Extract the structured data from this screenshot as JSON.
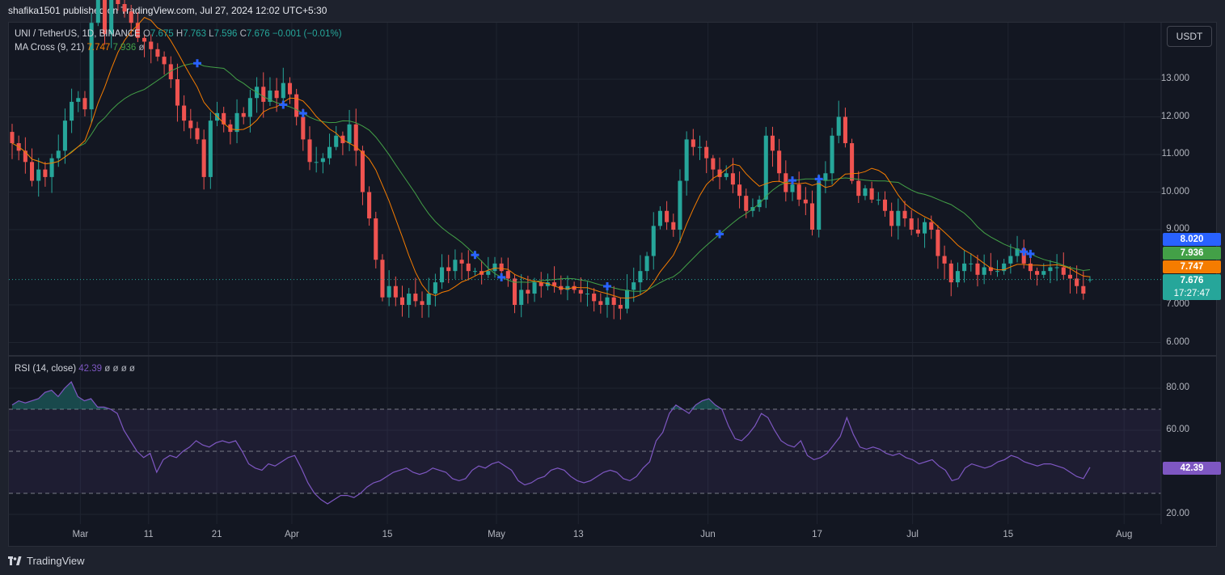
{
  "header": {
    "published": "shafika1501 published on TradingView.com, Jul 27, 2024 12:02 UTC+5:30"
  },
  "legend": {
    "symbol": "UNI / TetherUS, 1D, BINANCE",
    "o_label": "O",
    "o": "7.675",
    "h_label": "H",
    "h": "7.763",
    "l_label": "L",
    "l": "7.596",
    "c_label": "C",
    "c": "7.676",
    "change": "−0.001 (−0.01%)",
    "ma_name": "MA Cross (9, 21)",
    "ma_fast": "7.747",
    "ma_slow": "7.936",
    "ma_extra": "ø",
    "rsi_name": "RSI (14, close)",
    "rsi_value": "42.39",
    "rsi_extra": "ø ø ø ø"
  },
  "currency_button": "USDT",
  "price_tags": {
    "blue": "8.020",
    "green": "7.936",
    "orange": "7.747",
    "last": "7.676",
    "countdown": "17:27:47",
    "rsi": "42.39"
  },
  "colors": {
    "up": "#26a69a",
    "down": "#ef5350",
    "ma_fast": "#f57c00",
    "ma_slow": "#43a047",
    "cross": "#2962ff",
    "rsi": "#7e57c2",
    "bg": "#131722",
    "grid": "#1f2430"
  },
  "price_axis": [
    "13.000",
    "12.000",
    "11.000",
    "10.000",
    "9.000",
    "7.000",
    "6.000"
  ],
  "rsi_axis": [
    "80.00",
    "60.00",
    "20.00"
  ],
  "time_axis": [
    "Mar",
    "11",
    "21",
    "Apr",
    "15",
    "May",
    "13",
    "Jun",
    "17",
    "Jul",
    "15",
    "Aug"
  ],
  "branding": "TradingView",
  "chart_data": [
    {
      "type": "candlestick",
      "symbol": "UNI / TetherUS",
      "interval": "1D",
      "exchange": "BINANCE",
      "y_unit": "USDT",
      "ylim": [
        5.7,
        14.0
      ],
      "x_start": "2024-02-20",
      "x_end": "2024-07-27",
      "last": {
        "open": 7.675,
        "high": 7.763,
        "low": 7.596,
        "close": 7.676
      },
      "closes": [
        11.3,
        11.1,
        10.8,
        10.3,
        10.6,
        10.4,
        10.9,
        11.1,
        11.9,
        12.4,
        12.5,
        12.2,
        14.5,
        15.4,
        14.2,
        15.3,
        15.0,
        14.8,
        14.5,
        14.1,
        14.0,
        13.8,
        13.6,
        13.4,
        13.0,
        12.3,
        11.9,
        11.7,
        11.4,
        10.4,
        11.9,
        12.1,
        11.8,
        11.6,
        12.1,
        12.0,
        12.5,
        12.8,
        12.4,
        12.7,
        12.5,
        12.9,
        12.6,
        12.0,
        11.4,
        10.8,
        10.8,
        10.9,
        11.2,
        11.5,
        11.3,
        11.8,
        11.1,
        10.0,
        9.3,
        8.2,
        7.2,
        7.5,
        7.2,
        7.0,
        7.3,
        7.1,
        7.0,
        7.3,
        7.6,
        8.0,
        7.9,
        8.2,
        8.1,
        7.9,
        7.9,
        7.8,
        7.9,
        8.1,
        7.9,
        7.7,
        7.0,
        7.4,
        7.3,
        7.6,
        7.5,
        7.6,
        7.5,
        7.4,
        7.5,
        7.4,
        7.3,
        7.3,
        7.1,
        7.0,
        7.2,
        7.0,
        6.9,
        7.4,
        7.6,
        7.9,
        8.3,
        9.1,
        9.5,
        9.2,
        9.0,
        10.3,
        11.4,
        11.2,
        11.2,
        10.9,
        10.6,
        10.4,
        10.5,
        10.2,
        9.9,
        9.5,
        9.6,
        9.8,
        11.5,
        11.1,
        10.5,
        10.0,
        10.2,
        9.8,
        9.7,
        9.0,
        10.3,
        10.5,
        11.5,
        12.0,
        11.3,
        10.3,
        9.9,
        10.1,
        9.8,
        9.8,
        9.5,
        9.1,
        9.5,
        9.3,
        9.0,
        8.9,
        9.2,
        9.0,
        8.3,
        8.1,
        7.6,
        7.9,
        8.1,
        8.1,
        7.8,
        8.0,
        7.9,
        7.9,
        8.1,
        8.3,
        8.5,
        8.1,
        7.9,
        7.8,
        7.9,
        8.0,
        8.0,
        7.8,
        7.7,
        7.5,
        7.3,
        7.676
      ],
      "ma_fast_last": 7.747,
      "ma_slow_last": 7.936,
      "ma_cross_dates": [
        "2024-03-19",
        "2024-04-01",
        "2024-04-04",
        "2024-04-30",
        "2024-05-04",
        "2024-05-20",
        "2024-06-06",
        "2024-06-17",
        "2024-06-21",
        "2024-07-22",
        "2024-07-23"
      ],
      "grid": true
    },
    {
      "type": "line",
      "title": "RSI (14, close)",
      "ylim": [
        12,
        93
      ],
      "bands": {
        "upper": 70,
        "middle": 50,
        "lower": 30
      },
      "last_value": 42.39,
      "x_start": "2024-02-20",
      "x_end": "2024-07-27",
      "values": [
        72,
        74,
        73,
        74,
        75,
        78,
        79,
        76,
        80,
        83,
        76,
        74,
        75,
        71,
        71,
        70,
        68,
        60,
        55,
        50,
        47,
        49,
        40,
        46,
        48,
        47,
        50,
        52,
        55,
        53,
        52,
        54,
        55,
        54,
        55,
        50,
        44,
        42,
        41,
        44,
        43,
        45,
        47,
        48,
        42,
        35,
        30,
        27,
        25,
        27,
        29,
        29,
        28,
        30,
        33,
        35,
        36,
        38,
        40,
        41,
        42,
        40,
        39,
        40,
        42,
        41,
        40,
        37,
        36,
        37,
        41,
        43,
        42,
        44,
        45,
        43,
        41,
        36,
        34,
        35,
        37,
        38,
        41,
        42,
        41,
        38,
        36,
        35,
        36,
        38,
        40,
        41,
        40,
        37,
        36,
        38,
        42,
        45,
        55,
        59,
        68,
        72,
        70,
        68,
        72,
        74,
        75,
        72,
        70,
        62,
        56,
        55,
        58,
        62,
        68,
        66,
        60,
        55,
        53,
        52,
        55,
        48,
        46,
        47,
        49,
        53,
        57,
        66,
        58,
        52,
        51,
        52,
        51,
        49,
        48,
        49,
        47,
        46,
        44,
        45,
        46,
        43,
        41,
        36,
        37,
        42,
        44,
        43,
        42,
        43,
        45,
        46,
        48,
        47,
        45,
        44,
        43,
        44,
        44,
        43,
        42,
        40,
        38,
        37,
        42.39
      ],
      "grid": true
    }
  ]
}
